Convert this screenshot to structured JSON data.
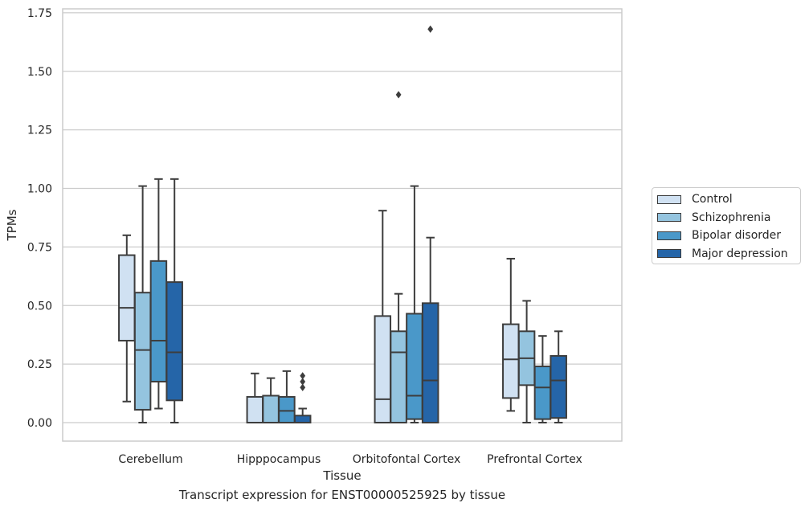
{
  "chart_data": {
    "type": "box",
    "title": "",
    "xlabel": "Tissue",
    "ylabel": "TPMs",
    "caption": "Transcript expression for ENST00000525925 by tissue",
    "ylim": [
      -0.08,
      1.76
    ],
    "yticks": [
      "0.00",
      "0.25",
      "0.50",
      "0.75",
      "1.00",
      "1.25",
      "1.50",
      "1.75"
    ],
    "grid": "horizontal",
    "legend_placement": "right",
    "categories": [
      "Cerebellum",
      "Hipppocampus",
      "Orbitofontal Cortex",
      "Prefrontal Cortex"
    ],
    "series": [
      {
        "name": "Control",
        "color": "#d0e1f2",
        "boxes": [
          {
            "q1": 0.35,
            "median": 0.49,
            "q3": 0.715,
            "whislo": 0.09,
            "whishi": 0.8,
            "fliers": []
          },
          {
            "q1": 0.0,
            "median": 0.0,
            "q3": 0.11,
            "whislo": 0.0,
            "whishi": 0.21,
            "fliers": []
          },
          {
            "q1": 0.0,
            "median": 0.1,
            "q3": 0.455,
            "whislo": 0.0,
            "whishi": 0.905,
            "fliers": []
          },
          {
            "q1": 0.105,
            "median": 0.27,
            "q3": 0.42,
            "whislo": 0.05,
            "whishi": 0.7,
            "fliers": []
          }
        ]
      },
      {
        "name": "Schizophrenia",
        "color": "#94c4df",
        "boxes": [
          {
            "q1": 0.055,
            "median": 0.31,
            "q3": 0.555,
            "whislo": 0.0,
            "whishi": 1.01,
            "fliers": []
          },
          {
            "q1": 0.0,
            "median": 0.0,
            "q3": 0.115,
            "whislo": 0.0,
            "whishi": 0.19,
            "fliers": []
          },
          {
            "q1": 0.0,
            "median": 0.3,
            "q3": 0.39,
            "whislo": 0.0,
            "whishi": 0.55,
            "fliers": [
              1.4
            ]
          },
          {
            "q1": 0.16,
            "median": 0.275,
            "q3": 0.39,
            "whislo": 0.0,
            "whishi": 0.52,
            "fliers": []
          }
        ]
      },
      {
        "name": "Bipolar disorder",
        "color": "#4a98c9",
        "boxes": [
          {
            "q1": 0.175,
            "median": 0.35,
            "q3": 0.69,
            "whislo": 0.06,
            "whishi": 1.04,
            "fliers": []
          },
          {
            "q1": 0.0,
            "median": 0.05,
            "q3": 0.11,
            "whislo": 0.0,
            "whishi": 0.22,
            "fliers": []
          },
          {
            "q1": 0.015,
            "median": 0.115,
            "q3": 0.465,
            "whislo": 0.0,
            "whishi": 1.01,
            "fliers": []
          },
          {
            "q1": 0.015,
            "median": 0.15,
            "q3": 0.24,
            "whislo": 0.0,
            "whishi": 0.37,
            "fliers": []
          }
        ]
      },
      {
        "name": "Major depression",
        "color": "#2565a8",
        "boxes": [
          {
            "q1": 0.095,
            "median": 0.3,
            "q3": 0.6,
            "whislo": 0.0,
            "whishi": 1.04,
            "fliers": []
          },
          {
            "q1": 0.0,
            "median": 0.0,
            "q3": 0.03,
            "whislo": 0.0,
            "whishi": 0.06,
            "fliers": [
              0.15,
              0.175,
              0.2
            ]
          },
          {
            "q1": 0.0,
            "median": 0.18,
            "q3": 0.51,
            "whislo": 0.0,
            "whishi": 0.79,
            "fliers": [
              1.68
            ]
          },
          {
            "q1": 0.02,
            "median": 0.18,
            "q3": 0.285,
            "whislo": 0.0,
            "whishi": 0.39,
            "fliers": []
          }
        ]
      }
    ]
  }
}
